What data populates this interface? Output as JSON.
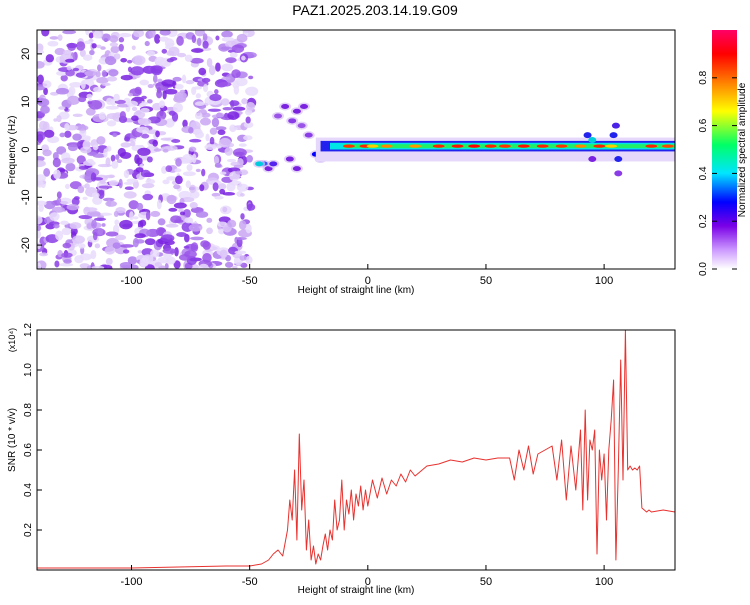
{
  "title": "PAZ1.2025.203.14.19.G09",
  "chart_data": [
    {
      "type": "heatmap",
      "xlabel": "Height of straight line (km)",
      "ylabel": "Frequency (Hz)",
      "xlim": [
        -140,
        130
      ],
      "ylim": [
        -25,
        25
      ],
      "x_ticks": [
        -100,
        -50,
        0,
        50,
        100
      ],
      "y_ticks": [
        -20,
        -10,
        0,
        10,
        20
      ],
      "grid": false,
      "colorbar": {
        "label": "Normalized spectral amplitude",
        "range": [
          0.0,
          1.0
        ],
        "ticks": [
          "0.0",
          "0.2",
          "0.4",
          "0.6",
          "0.8"
        ],
        "colors": [
          "#ffffff",
          "#cc99ff",
          "#7a00e6",
          "#0000ff",
          "#00e5ff",
          "#00ff66",
          "#ffff00",
          "#ff8000",
          "#ff0000",
          "#ff0066"
        ]
      }
    },
    {
      "type": "line",
      "xlabel": "Height of straight line (km)",
      "ylabel": "SNR (10 * v/v)",
      "y_multiplier": "(x10⁴)",
      "xlim": [
        -140,
        130
      ],
      "ylim": [
        0,
        1.2
      ],
      "x_ticks": [
        -100,
        -50,
        0,
        50,
        100
      ],
      "y_ticks": [
        "0.2",
        "0.4",
        "0.6",
        "0.8",
        "1.0",
        "1.2"
      ],
      "series": [
        {
          "color": "#e8322f",
          "x": [
            -140,
            -120,
            -100,
            -80,
            -60,
            -50,
            -45,
            -42,
            -40,
            -38,
            -36,
            -34,
            -33,
            -32,
            -31,
            -30,
            -29,
            -28,
            -27,
            -26,
            -25,
            -24,
            -23,
            -22,
            -21,
            -20,
            -19,
            -18,
            -17,
            -16,
            -15,
            -14,
            -13,
            -12,
            -11,
            -10,
            -9,
            -8,
            -7,
            -6,
            -5,
            -4,
            -3,
            -2,
            -1,
            0,
            2,
            4,
            6,
            8,
            10,
            12,
            14,
            16,
            18,
            20,
            25,
            30,
            35,
            40,
            45,
            50,
            55,
            60,
            62,
            64,
            66,
            68,
            70,
            72,
            75,
            78,
            80,
            82,
            84,
            86,
            88,
            90,
            91,
            92,
            93,
            94,
            95,
            96,
            97,
            98,
            99,
            100,
            101,
            102,
            103,
            104,
            105,
            106,
            107,
            108,
            109,
            110,
            111,
            112,
            113,
            114,
            115,
            116,
            117,
            118,
            119,
            120,
            125,
            130
          ],
          "y": [
            0.01,
            0.01,
            0.01,
            0.015,
            0.02,
            0.02,
            0.03,
            0.05,
            0.08,
            0.1,
            0.07,
            0.2,
            0.35,
            0.25,
            0.5,
            0.15,
            0.68,
            0.3,
            0.45,
            0.1,
            0.25,
            0.05,
            0.12,
            0.03,
            0.08,
            0.05,
            0.12,
            0.18,
            0.1,
            0.2,
            0.15,
            0.35,
            0.2,
            0.25,
            0.45,
            0.2,
            0.35,
            0.28,
            0.4,
            0.25,
            0.38,
            0.32,
            0.42,
            0.3,
            0.4,
            0.32,
            0.45,
            0.36,
            0.46,
            0.38,
            0.45,
            0.42,
            0.48,
            0.44,
            0.5,
            0.47,
            0.52,
            0.53,
            0.55,
            0.54,
            0.56,
            0.55,
            0.56,
            0.56,
            0.45,
            0.6,
            0.5,
            0.62,
            0.48,
            0.58,
            0.6,
            0.62,
            0.45,
            0.65,
            0.35,
            0.62,
            0.4,
            0.7,
            0.3,
            0.8,
            0.35,
            0.65,
            0.6,
            0.7,
            0.08,
            0.6,
            0.45,
            0.58,
            0.25,
            0.6,
            0.75,
            0.95,
            0.05,
            0.5,
            1.05,
            0.45,
            1.2,
            0.5,
            0.52,
            0.5,
            0.51,
            0.5,
            0.52,
            0.31,
            0.3,
            0.29,
            0.3,
            0.29,
            0.3,
            0.29
          ]
        }
      ]
    }
  ]
}
